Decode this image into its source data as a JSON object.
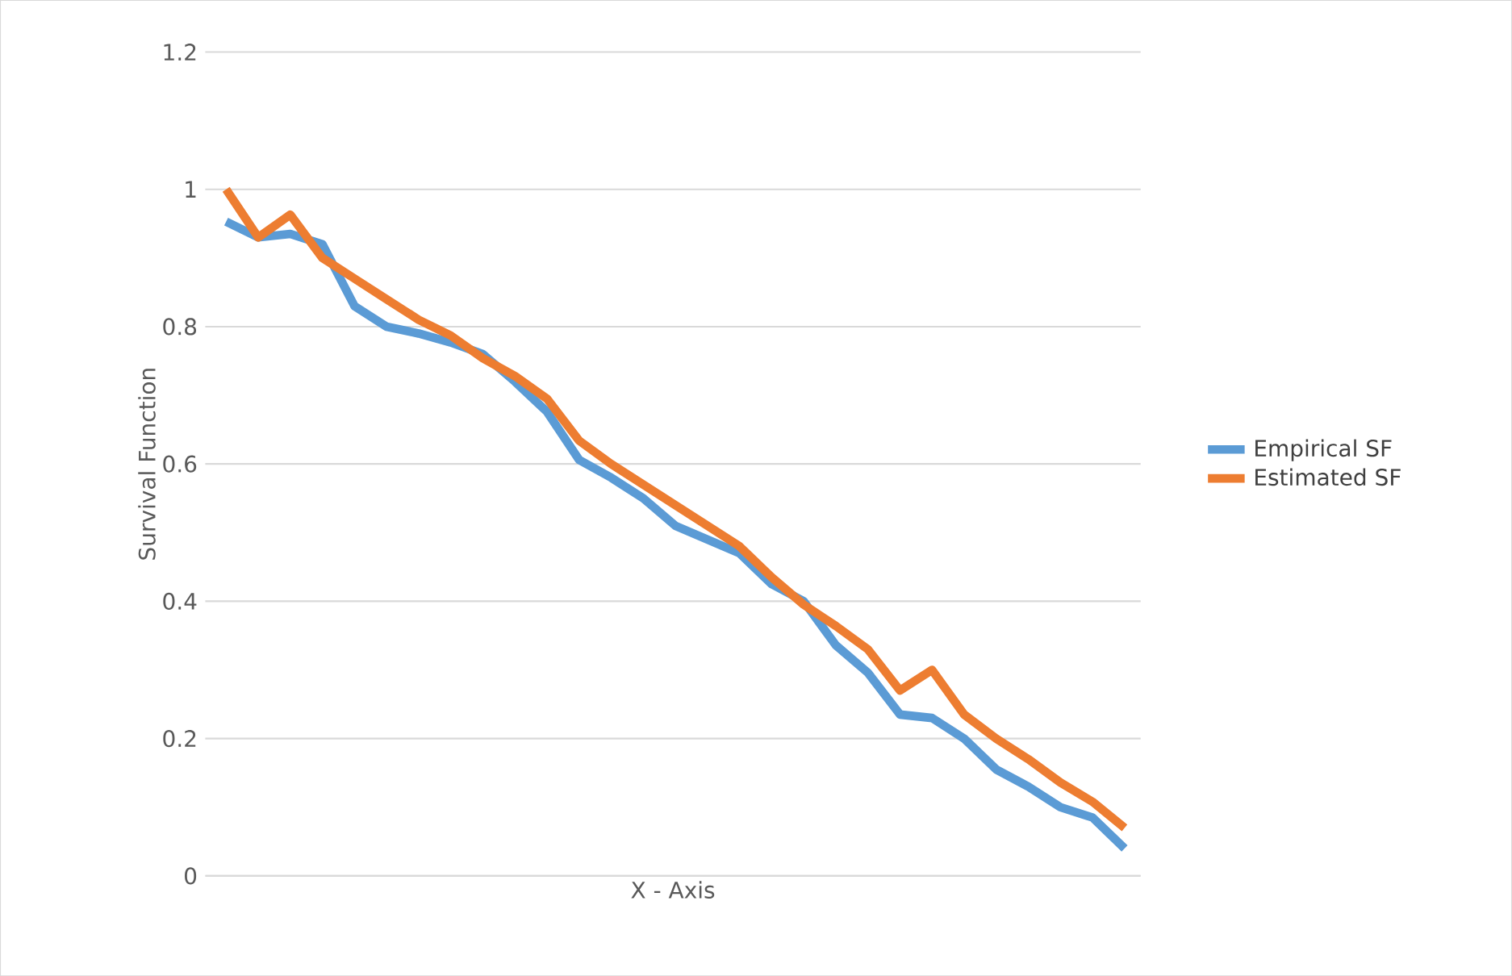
{
  "chart_data": {
    "type": "line",
    "xlabel": "X - Axis",
    "ylabel": "Survival Function",
    "categories": [
      null,
      null,
      null,
      null,
      null,
      null,
      null,
      null,
      null,
      null,
      null,
      null,
      null,
      null,
      null,
      null,
      null,
      null,
      null,
      null,
      null,
      null,
      null,
      null,
      null,
      null,
      null,
      null,
      null
    ],
    "series": [
      {
        "name": "Empirical SF",
        "color": "#5b9bd5",
        "values": [
          0.953,
          0.93,
          0.935,
          0.92,
          0.83,
          0.8,
          0.79,
          0.777,
          0.76,
          0.72,
          0.676,
          0.606,
          0.58,
          0.55,
          0.51,
          0.49,
          0.47,
          0.425,
          0.4,
          0.336,
          0.296,
          0.235,
          0.23,
          0.2,
          0.155,
          0.13,
          0.1,
          0.085,
          0.04
        ]
      },
      {
        "name": "Estimated SF",
        "color": "#ed7d31",
        "values": [
          1.0,
          0.93,
          0.963,
          0.9,
          0.87,
          0.84,
          0.81,
          0.787,
          0.754,
          0.728,
          0.695,
          0.634,
          0.6,
          0.57,
          0.54,
          0.51,
          0.48,
          0.435,
          0.395,
          0.364,
          0.33,
          0.27,
          0.3,
          0.235,
          0.2,
          0.17,
          0.136,
          0.108,
          0.07
        ]
      }
    ],
    "ylim": [
      0,
      1.2
    ],
    "yticks": [
      0,
      0.2,
      0.4,
      0.6,
      0.8,
      1,
      1.2
    ],
    "grid": "y",
    "legend": "right",
    "marker": "none",
    "line_style": "solid"
  }
}
